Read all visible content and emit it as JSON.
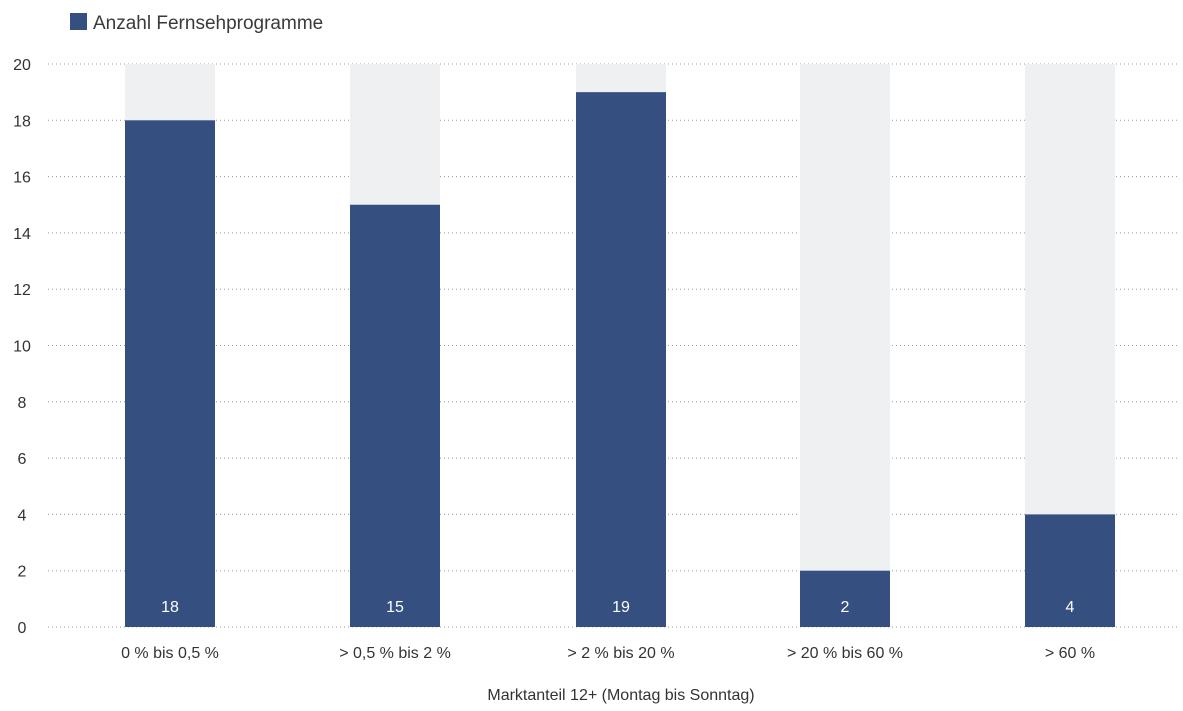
{
  "chart_data": {
    "type": "bar",
    "legend": {
      "placement": "top-left",
      "entries": [
        "Anzahl Fernsehprogramme"
      ]
    },
    "categories": [
      "0 % bis 0,5 %",
      "> 0,5 % bis 2 %",
      "> 2 % bis 20 %",
      "> 20 % bis 60 %",
      "> 60 %"
    ],
    "series": [
      {
        "name": "Anzahl Fernsehprogramme",
        "values": [
          18,
          15,
          19,
          2,
          4
        ]
      }
    ],
    "data_labels": [
      "18",
      "15",
      "19",
      "2",
      "4"
    ],
    "xlabel": "Marktanteil 12+ (Montag bis Sonntag)",
    "ylabel": "",
    "ylim": [
      0,
      20
    ],
    "yticks": [
      0,
      2,
      4,
      6,
      8,
      10,
      12,
      14,
      16,
      18,
      20
    ],
    "grid": true,
    "background_bars": true,
    "colors": {
      "bar": "#344f80",
      "background_bar": "#eff0f2",
      "grid": "#9a9a9a"
    }
  }
}
